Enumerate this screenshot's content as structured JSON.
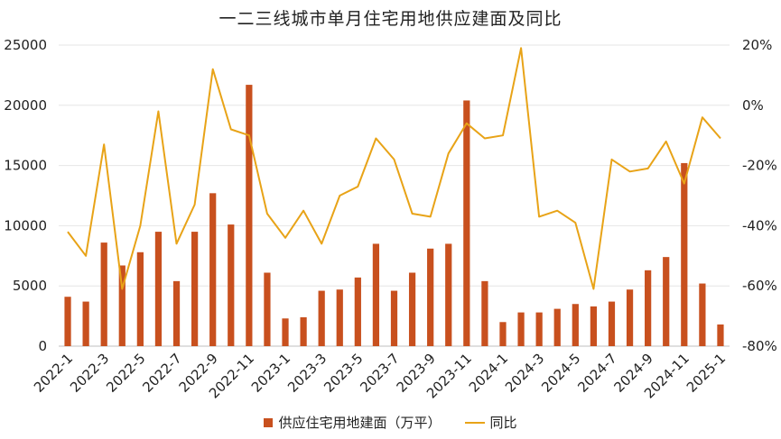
{
  "chart_data": {
    "type": "bar+line",
    "title": "一二三线城市单月住宅用地供应建面及同比",
    "categories": [
      "2022-1",
      "2022-2",
      "2022-3",
      "2022-4",
      "2022-5",
      "2022-6",
      "2022-7",
      "2022-8",
      "2022-9",
      "2022-10",
      "2022-11",
      "2022-12",
      "2023-1",
      "2023-2",
      "2023-3",
      "2023-4",
      "2023-5",
      "2023-6",
      "2023-7",
      "2023-8",
      "2023-9",
      "2023-10",
      "2023-11",
      "2023-12",
      "2024-1",
      "2024-2",
      "2024-3",
      "2024-4",
      "2024-5",
      "2024-6",
      "2024-7",
      "2024-8",
      "2024-9",
      "2024-10",
      "2024-11",
      "2024-12",
      "2025-1"
    ],
    "x_tick_labels": [
      "2022-1",
      "2022-3",
      "2022-5",
      "2022-7",
      "2022-9",
      "2022-11",
      "2023-1",
      "2023-3",
      "2023-5",
      "2023-7",
      "2023-9",
      "2023-11",
      "2024-1",
      "2024-3",
      "2024-5",
      "2024-7",
      "2024-9",
      "2024-11",
      "2025-1"
    ],
    "series": [
      {
        "name": "供应住宅用地建面（万平）",
        "type": "bar",
        "axis": "left",
        "color": "#C8501E",
        "values": [
          4100,
          3700,
          8600,
          6700,
          7800,
          9500,
          5400,
          9500,
          12700,
          10100,
          21700,
          6100,
          2300,
          2400,
          4600,
          4700,
          5700,
          8500,
          4600,
          6100,
          8100,
          8500,
          20400,
          5400,
          2000,
          2800,
          2800,
          3100,
          3500,
          3300,
          3700,
          4700,
          6300,
          7400,
          15200,
          5200,
          1800
        ]
      },
      {
        "name": "同比",
        "type": "line",
        "axis": "right",
        "color": "#E8A317",
        "values": [
          -42,
          -50,
          -13,
          -61,
          -40,
          -2,
          -46,
          -33,
          12,
          -8,
          -10,
          -36,
          -44,
          -35,
          -46,
          -30,
          -27,
          -11,
          -18,
          -36,
          -37,
          -16,
          -6,
          -11,
          -10,
          19,
          -37,
          -35,
          -39,
          -61,
          -18,
          -22,
          -21,
          -12,
          -26,
          -4,
          -11
        ]
      }
    ],
    "y_left": {
      "min": 0,
      "max": 25000,
      "ticks": [
        0,
        5000,
        10000,
        15000,
        20000,
        25000
      ]
    },
    "y_right": {
      "min": -80,
      "max": 20,
      "ticks": [
        -80,
        -60,
        -40,
        -20,
        0,
        20
      ],
      "tick_labels": [
        "-80%",
        "-60%",
        "-40%",
        "-20%",
        "0%",
        "20%"
      ]
    },
    "grid": true,
    "legend_position": "bottom"
  },
  "legend": {
    "bar_label": "供应住宅用地建面（万平）",
    "line_label": "同比"
  }
}
